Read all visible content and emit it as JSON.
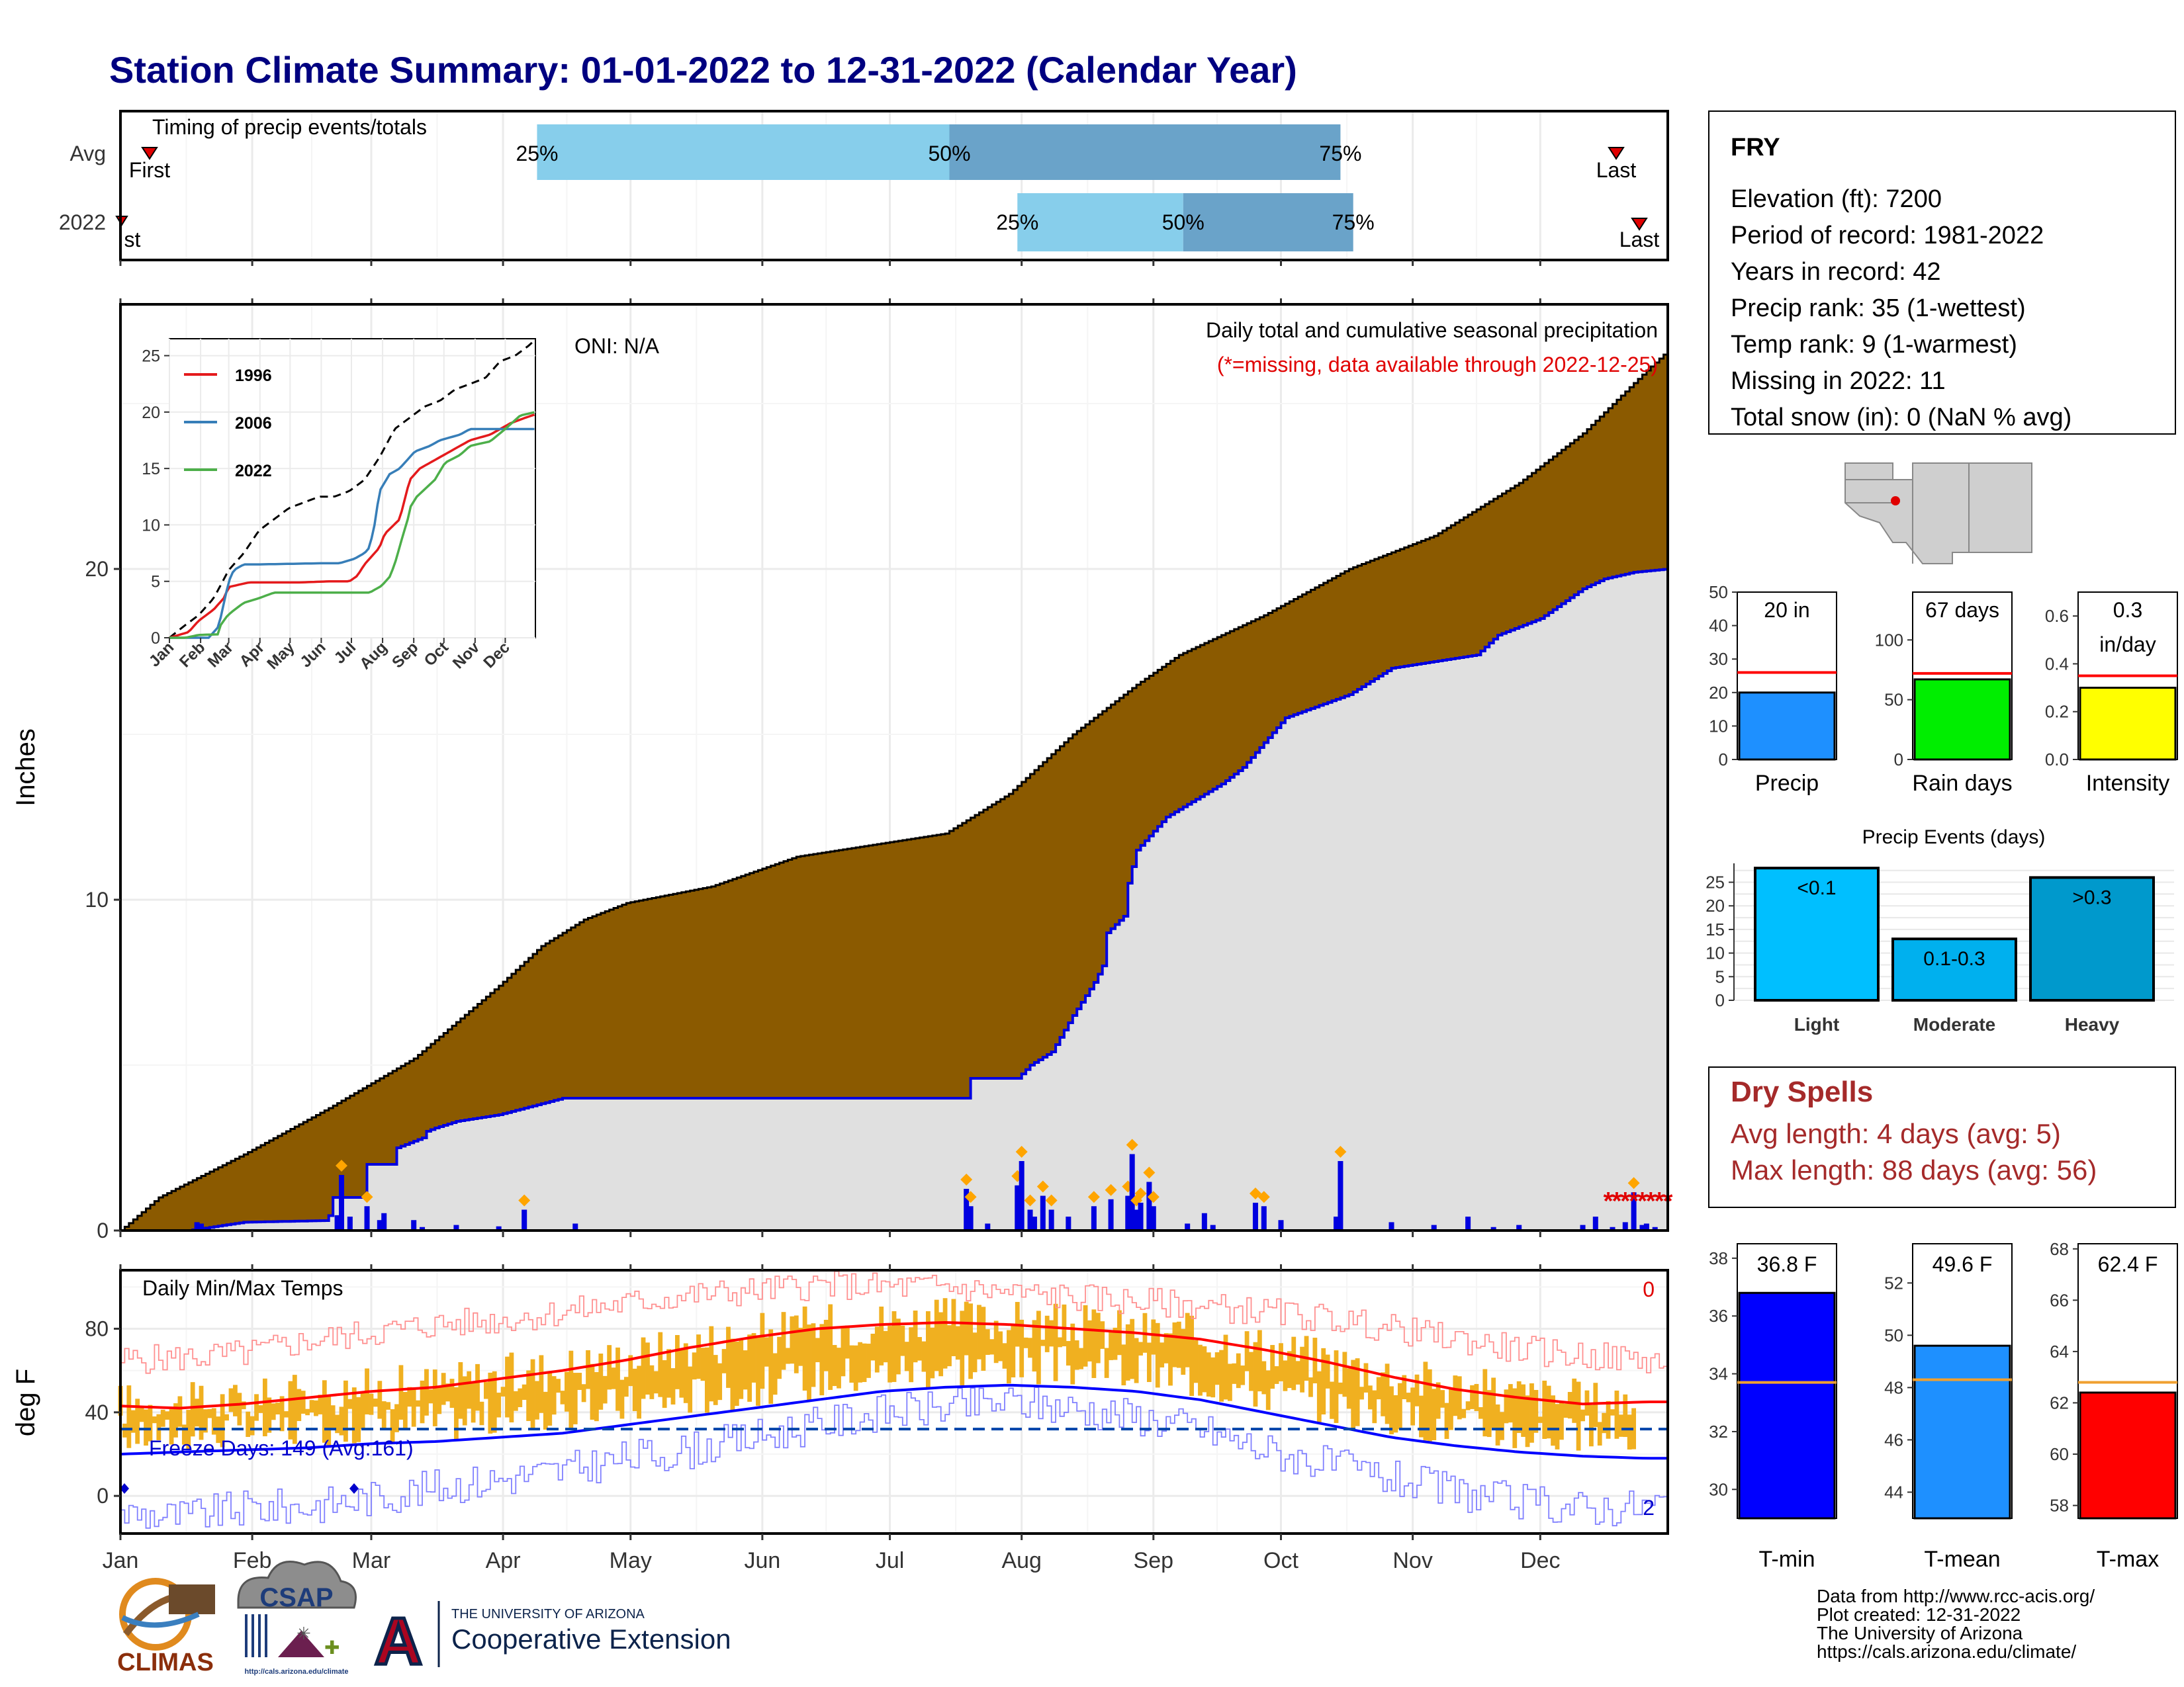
{
  "title": "Station Climate Summary: 01-01-2022 to 12-31-2022 (Calendar Year)",
  "months": [
    "Jan",
    "Feb",
    "Mar",
    "Apr",
    "May",
    "Jun",
    "Jul",
    "Aug",
    "Sep",
    "Oct",
    "Nov",
    "Dec"
  ],
  "timing": {
    "label": "Timing of precip events/totals",
    "rows": [
      "Avg",
      "2022"
    ],
    "first_label": "First",
    "last_label": "Last",
    "avg": {
      "p25_day": 99,
      "p50_day": 196,
      "p75_day": 288
    },
    "y2022": {
      "p25_day": 212,
      "p50_day": 251,
      "p75_day": 291
    },
    "pct_labels": [
      "25%",
      "50%",
      "75%"
    ]
  },
  "precip_panel": {
    "ylabel": "Inches",
    "oni": "ONI: N/A",
    "note1": "Daily total and cumulative seasonal precipitation",
    "note2": "(*=missing, data available through 2022-12-25)",
    "yticks": [
      "0",
      "10",
      "20"
    ],
    "missing_marker": "*"
  },
  "inset": {
    "yticks": [
      "0",
      "5",
      "10",
      "15",
      "20",
      "25"
    ],
    "months": [
      "Jan",
      "Feb",
      "Mar",
      "Apr",
      "May",
      "Jun",
      "Jul",
      "Aug",
      "Sep",
      "Oct",
      "Nov",
      "Dec"
    ],
    "legend": [
      "1996",
      "2006",
      "2022"
    ],
    "colors": {
      "1996": "#e41a1c",
      "2006": "#377eb8",
      "2022": "#4daf4a"
    }
  },
  "temp_panel": {
    "ylabel": "deg F",
    "label": "Daily Min/Max Temps",
    "freeze": "Freeze Days: 149 (Avg:161)",
    "count_top": "0",
    "count_bottom": "2",
    "yticks": [
      "0",
      "40",
      "80"
    ]
  },
  "station": {
    "name": "FRY",
    "lines": [
      "Elevation (ft): 7200",
      "Period of record: 1981-2022",
      "Years in record: 42",
      "Precip rank: 35 (1-wettest)",
      "Temp rank: 9 (1-warmest)",
      "Missing in 2022: 11",
      "Total snow (in): 0 (NaN % avg)"
    ]
  },
  "mini_bars": [
    {
      "label": "Precip",
      "value_text": "20 in",
      "value": 20,
      "avg": 26,
      "max": 50,
      "ticks": [
        "0",
        "10",
        "20",
        "30",
        "40",
        "50"
      ],
      "color": "#1e90ff"
    },
    {
      "label": "Rain days",
      "value_text": "67 days",
      "value": 67,
      "avg": 72,
      "max": 140,
      "ticks": [
        "0",
        "50",
        "100"
      ],
      "color": "#00ee00"
    },
    {
      "label": "Intensity",
      "value_text": "0.3",
      "value_text2": "in/day",
      "value": 0.3,
      "avg": 0.35,
      "max": 0.7,
      "ticks": [
        "0.0",
        "0.2",
        "0.4",
        "0.6"
      ],
      "color": "#ffff00"
    }
  ],
  "events": {
    "title": "Precip Events (days)",
    "ticks": [
      "0",
      "5",
      "10",
      "15",
      "20",
      "25"
    ],
    "bars": [
      {
        "cat": "Light",
        "label": "<0.1",
        "value": 28,
        "color": "#00bfff"
      },
      {
        "cat": "Moderate",
        "label": "0.1-0.3",
        "value": 13,
        "color": "#00b0ee"
      },
      {
        "cat": "Heavy",
        "label": ">0.3",
        "value": 26,
        "color": "#0099cc"
      }
    ]
  },
  "dry_spells": {
    "title": "Dry Spells",
    "line1": "Avg length: 4 days (avg: 5)",
    "line2": "Max length: 88 days (avg: 56)"
  },
  "temp_bars": [
    {
      "label": "T-min",
      "value_text": "36.8 F",
      "value": 36.8,
      "avg": 33.7,
      "min": 29,
      "max": 38.5,
      "ticks": [
        "30",
        "32",
        "34",
        "36",
        "38"
      ],
      "color": "#0000ff"
    },
    {
      "label": "T-mean",
      "value_text": "49.6 F",
      "value": 49.6,
      "avg": 48.3,
      "min": 43,
      "max": 53.5,
      "ticks": [
        "44",
        "46",
        "48",
        "50",
        "52"
      ],
      "color": "#1e90ff"
    },
    {
      "label": "T-max",
      "value_text": "62.4 F",
      "value": 62.4,
      "avg": 62.8,
      "min": 57.5,
      "max": 68.2,
      "ticks": [
        "58",
        "60",
        "62",
        "64",
        "66",
        "68"
      ],
      "color": "#ff0000"
    }
  ],
  "footer": {
    "lines": [
      "Data from http://www.rcc-acis.org/",
      "Plot created: 12-31-2022",
      "The University of Arizona",
      "https://cals.arizona.edu/climate/"
    ],
    "climas": "CLIMAS",
    "csap": "CSAP",
    "csap_url": "http://cals.arizona.edu/climate",
    "ua_top": "THE UNIVERSITY OF ARIZONA",
    "ua_bottom": "Cooperative Extension",
    "ua_letter": "A"
  },
  "chart_data": [
    {
      "type": "area",
      "title": "Daily total and cumulative seasonal precipitation",
      "ylabel": "Inches",
      "xlim": [
        1,
        365
      ],
      "ylim": [
        0,
        28
      ],
      "series": [
        {
          "name": "",
          "desc": "avg cumulative",
          "x": [
            1,
            10,
            30,
            50,
            70,
            90,
            100,
            110,
            120,
            140,
            160,
            180,
            195,
            210,
            225,
            240,
            250,
            270,
            290,
            310,
            330,
            345,
            360,
            365
          ],
          "values": [
            0,
            1.0,
            2.3,
            3.7,
            5.2,
            7.4,
            8.6,
            9.4,
            9.9,
            10.4,
            11.3,
            11.7,
            12.0,
            13.2,
            15.0,
            16.5,
            17.4,
            18.6,
            20.0,
            21.0,
            22.6,
            24.1,
            26.0,
            26.6
          ]
        },
        {
          "name": "2022",
          "desc": "2022 cumulative",
          "x": [
            1,
            17,
            30,
            49,
            50,
            51,
            58,
            59,
            65,
            66,
            72,
            73,
            75,
            80,
            90,
            105,
            200,
            201,
            212,
            215,
            220,
            225,
            230,
            232,
            233,
            237,
            238,
            240,
            247,
            260,
            265,
            275,
            290,
            300,
            320,
            325,
            335,
            345,
            350,
            357,
            365
          ],
          "values": [
            0,
            0,
            0.25,
            0.3,
            0.45,
            1.0,
            1.0,
            2.0,
            2.0,
            2.5,
            2.8,
            3.0,
            3.1,
            3.3,
            3.5,
            4.0,
            4.0,
            4.6,
            4.6,
            5.0,
            5.4,
            6.5,
            7.5,
            8.0,
            9.0,
            9.5,
            10.5,
            11.5,
            12.5,
            13.5,
            14.0,
            15.5,
            16.2,
            17.0,
            17.4,
            18.0,
            18.5,
            19.4,
            19.7,
            19.9,
            20.0
          ]
        }
      ],
      "daily_events": [
        [
          19,
          0.12
        ],
        [
          20,
          0.1
        ],
        [
          52,
          0.22
        ],
        [
          53,
          0.8
        ],
        [
          55,
          0.2
        ],
        [
          59,
          0.35
        ],
        [
          62,
          0.15
        ],
        [
          63,
          0.25
        ],
        [
          70,
          0.15
        ],
        [
          72,
          0.05
        ],
        [
          80,
          0.08
        ],
        [
          90,
          0.06
        ],
        [
          96,
          0.3
        ],
        [
          108,
          0.1
        ],
        [
          200,
          0.6
        ],
        [
          201,
          0.35
        ],
        [
          205,
          0.1
        ],
        [
          212,
          0.65
        ],
        [
          213,
          1.0
        ],
        [
          215,
          0.3
        ],
        [
          216,
          0.2
        ],
        [
          218,
          0.5
        ],
        [
          220,
          0.3
        ],
        [
          224,
          0.2
        ],
        [
          230,
          0.35
        ],
        [
          234,
          0.45
        ],
        [
          238,
          0.5
        ],
        [
          239,
          1.1
        ],
        [
          240,
          0.3
        ],
        [
          241,
          0.4
        ],
        [
          243,
          0.7
        ],
        [
          244,
          0.35
        ],
        [
          252,
          0.1
        ],
        [
          256,
          0.25
        ],
        [
          258,
          0.08
        ],
        [
          268,
          0.4
        ],
        [
          270,
          0.35
        ],
        [
          274,
          0.15
        ],
        [
          287,
          0.2
        ],
        [
          288,
          1.0
        ],
        [
          300,
          0.12
        ],
        [
          310,
          0.08
        ],
        [
          318,
          0.2
        ],
        [
          324,
          0.05
        ],
        [
          330,
          0.08
        ],
        [
          345,
          0.08
        ],
        [
          348,
          0.2
        ],
        [
          352,
          0.05
        ],
        [
          355,
          0.12
        ],
        [
          357,
          0.55
        ],
        [
          359,
          0.08
        ],
        [
          360,
          0.1
        ],
        [
          362,
          0.05
        ]
      ],
      "missing_days": [
        351,
        353,
        355,
        357,
        359,
        361,
        363,
        365
      ]
    },
    {
      "type": "line",
      "title": "",
      "xlim": [
        1,
        365
      ],
      "ylim": [
        0,
        26.5
      ],
      "series": [
        {
          "name": "",
          "x": [
            1,
            15,
            30,
            45,
            60,
            75,
            90,
            105,
            120,
            135,
            150,
            165,
            180,
            195,
            210,
            225,
            240,
            255,
            270,
            285,
            300,
            315,
            330,
            345,
            360,
            365
          ],
          "values": [
            0,
            1,
            2,
            3.5,
            6,
            7.5,
            9.5,
            10.5,
            11.5,
            12,
            12.5,
            12.5,
            13,
            14,
            16,
            18.5,
            19.5,
            20.5,
            21,
            22,
            22.5,
            23,
            24.5,
            25,
            26,
            26.5
          ]
        },
        {
          "name": "1996",
          "x": [
            1,
            20,
            30,
            45,
            55,
            60,
            80,
            100,
            130,
            160,
            180,
            188,
            195,
            200,
            210,
            215,
            230,
            240,
            250,
            260,
            280,
            300,
            320,
            340,
            355,
            365
          ],
          "values": [
            0,
            0.5,
            1.5,
            2.5,
            3.5,
            4.5,
            4.9,
            4.9,
            4.9,
            5,
            5,
            5.5,
            6.5,
            7,
            8,
            9.2,
            10.5,
            14,
            15,
            15.5,
            16.5,
            17.5,
            18,
            19,
            19.5,
            19.8
          ]
        },
        {
          "name": "2006",
          "x": [
            1,
            40,
            50,
            55,
            60,
            65,
            75,
            90,
            150,
            170,
            185,
            195,
            200,
            205,
            210,
            220,
            230,
            245,
            260,
            270,
            290,
            300,
            330,
            350,
            365
          ],
          "values": [
            0,
            0,
            1,
            3,
            5,
            6,
            6.5,
            6.5,
            6.6,
            6.6,
            7,
            7.5,
            8,
            10,
            13,
            14.5,
            15,
            16.5,
            17,
            17.5,
            18,
            18.5,
            18.5,
            18.5,
            18.5
          ]
        },
        {
          "name": "2022",
          "x": [
            1,
            17,
            30,
            49,
            51,
            59,
            66,
            75,
            90,
            105,
            150,
            200,
            212,
            220,
            225,
            233,
            238,
            240,
            247,
            265,
            275,
            290,
            300,
            320,
            335,
            350,
            365
          ],
          "values": [
            0,
            0,
            0.25,
            0.3,
            1,
            2,
            2.5,
            3.1,
            3.5,
            4,
            4,
            4,
            4.6,
            5.4,
            6.5,
            9,
            10.5,
            11.5,
            12.5,
            14,
            15.5,
            16.2,
            17,
            17.4,
            18.5,
            19.7,
            20
          ]
        }
      ]
    },
    {
      "type": "bar",
      "title": "Daily Min/Max Temps",
      "ylabel": "deg F",
      "ylim": [
        -18,
        108
      ],
      "x": [
        1,
        15,
        30,
        45,
        60,
        75,
        90,
        105,
        120,
        135,
        150,
        165,
        180,
        195,
        210,
        225,
        240,
        255,
        270,
        285,
        300,
        315,
        330,
        345,
        360,
        365
      ],
      "series": [
        {
          "name": "",
          "desc": "avg max",
          "values": [
            43,
            42,
            44,
            47,
            50,
            52,
            56,
            60,
            65,
            71,
            76,
            80,
            82,
            83,
            82,
            80,
            78,
            75,
            70,
            64,
            57,
            51,
            47,
            44,
            45,
            45
          ]
        },
        {
          "name": "",
          "desc": "avg min",
          "values": [
            20,
            21,
            22,
            23,
            25,
            26,
            28,
            30,
            34,
            38,
            42,
            46,
            50,
            52,
            53,
            52,
            50,
            46,
            40,
            34,
            28,
            24,
            21,
            19,
            18,
            18
          ]
        },
        {
          "name": "",
          "desc": "record high",
          "values": [
            65,
            66,
            68,
            74,
            78,
            82,
            84,
            88,
            92,
            96,
            98,
            101,
            100,
            100,
            97,
            95,
            93,
            91,
            88,
            85,
            80,
            75,
            70,
            67,
            65,
            63
          ]
        },
        {
          "name": "",
          "desc": "record low",
          "values": [
            -8,
            -10,
            -6,
            -5,
            -1,
            4,
            8,
            12,
            18,
            22,
            28,
            34,
            40,
            42,
            45,
            42,
            38,
            32,
            22,
            15,
            8,
            2,
            -3,
            -6,
            -5,
            -3
          ]
        }
      ],
      "freeze_line": 32
    },
    {
      "type": "bar",
      "title": "Precip Events (days)",
      "categories": [
        "Light",
        "Moderate",
        "Heavy"
      ],
      "values": [
        28,
        13,
        26
      ]
    }
  ]
}
